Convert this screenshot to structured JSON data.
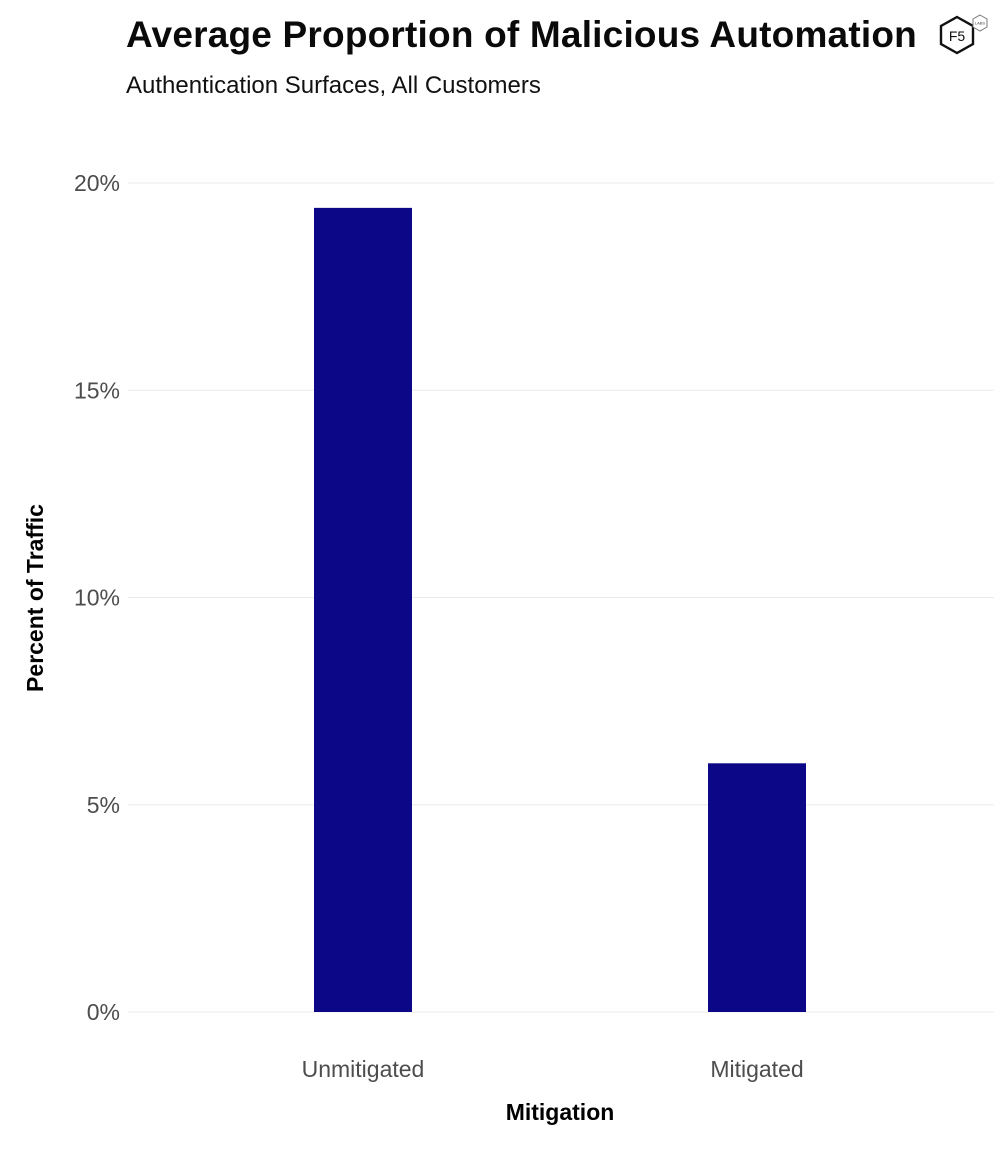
{
  "header": {
    "logo_text": "F5",
    "logo_badge": "LABS"
  },
  "colors": {
    "bar": "#0c0786",
    "grid": "#ebebeb",
    "tick_text": "#4d4d4d"
  },
  "chart_data": {
    "type": "bar",
    "title": "Average Proportion of Malicious Automation",
    "subtitle": "Authentication Surfaces, All Customers",
    "xlabel": "Mitigation",
    "ylabel": "Percent of Traffic",
    "categories": [
      "Unmitigated",
      "Mitigated"
    ],
    "values": [
      19.4,
      6.0
    ],
    "value_unit": "%",
    "ylim": [
      0,
      20
    ],
    "yticks": [
      {
        "value": 0,
        "label": "0%"
      },
      {
        "value": 5,
        "label": "5%"
      },
      {
        "value": 10,
        "label": "10%"
      },
      {
        "value": 15,
        "label": "15%"
      },
      {
        "value": 20,
        "label": "20%"
      }
    ],
    "grid": true,
    "legend": "none"
  }
}
